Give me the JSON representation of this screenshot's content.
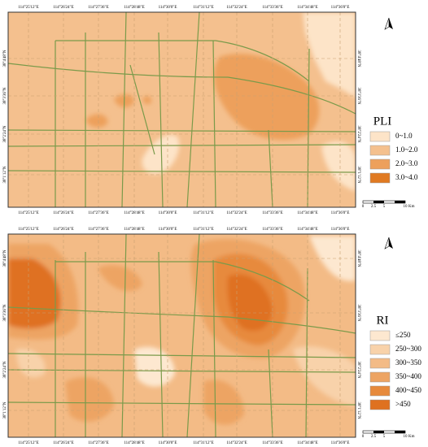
{
  "maps": [
    {
      "legend": {
        "title": "PLI",
        "items": [
          {
            "label": "0~1.0",
            "color": "#fde4c8"
          },
          {
            "label": "1.0~2.0",
            "color": "#f4c08e"
          },
          {
            "label": "2.0~3.0",
            "color": "#eda05c"
          },
          {
            "label": "3.0~4.0",
            "color": "#e07a22"
          }
        ]
      },
      "lon_labels": [
        "114°25'12\"E",
        "114°26'24\"E",
        "114°27'36\"E",
        "114°28'48\"E",
        "114°30'0\"E",
        "114°31'12\"E",
        "114°32'24\"E",
        "114°33'36\"E",
        "114°34'48\"E",
        "114°36'0\"E"
      ],
      "lat_labels": [
        "38°4'48\"N",
        "38°3'36\"N",
        "38°2'24\"N",
        "38°1'12\"N"
      ],
      "scale_labels": [
        "0",
        "2.5",
        "5",
        "10",
        "Km"
      ]
    },
    {
      "legend": {
        "title": "RI",
        "items": [
          {
            "label": "≤250",
            "color": "#fde8d0"
          },
          {
            "label": "250~300",
            "color": "#f8d2aa"
          },
          {
            "label": "300~350",
            "color": "#f3bb86"
          },
          {
            "label": "350~400",
            "color": "#eda463"
          },
          {
            "label": "400~450",
            "color": "#e78a3c"
          },
          {
            "label": ">450",
            "color": "#df7120"
          }
        ]
      },
      "lon_labels": [
        "114°25'12\"E",
        "114°26'24\"E",
        "114°27'36\"E",
        "114°28'48\"E",
        "114°30'0\"E",
        "114°31'12\"E",
        "114°32'24\"E",
        "114°33'36\"E",
        "114°34'48\"E",
        "114°36'0\"E"
      ],
      "lat_labels": [
        "38°4'48\"N",
        "38°3'36\"N",
        "38°2'24\"N",
        "38°1'12\"N"
      ],
      "scale_labels": [
        "0",
        "2.5",
        "5",
        "10",
        "Km"
      ]
    }
  ]
}
